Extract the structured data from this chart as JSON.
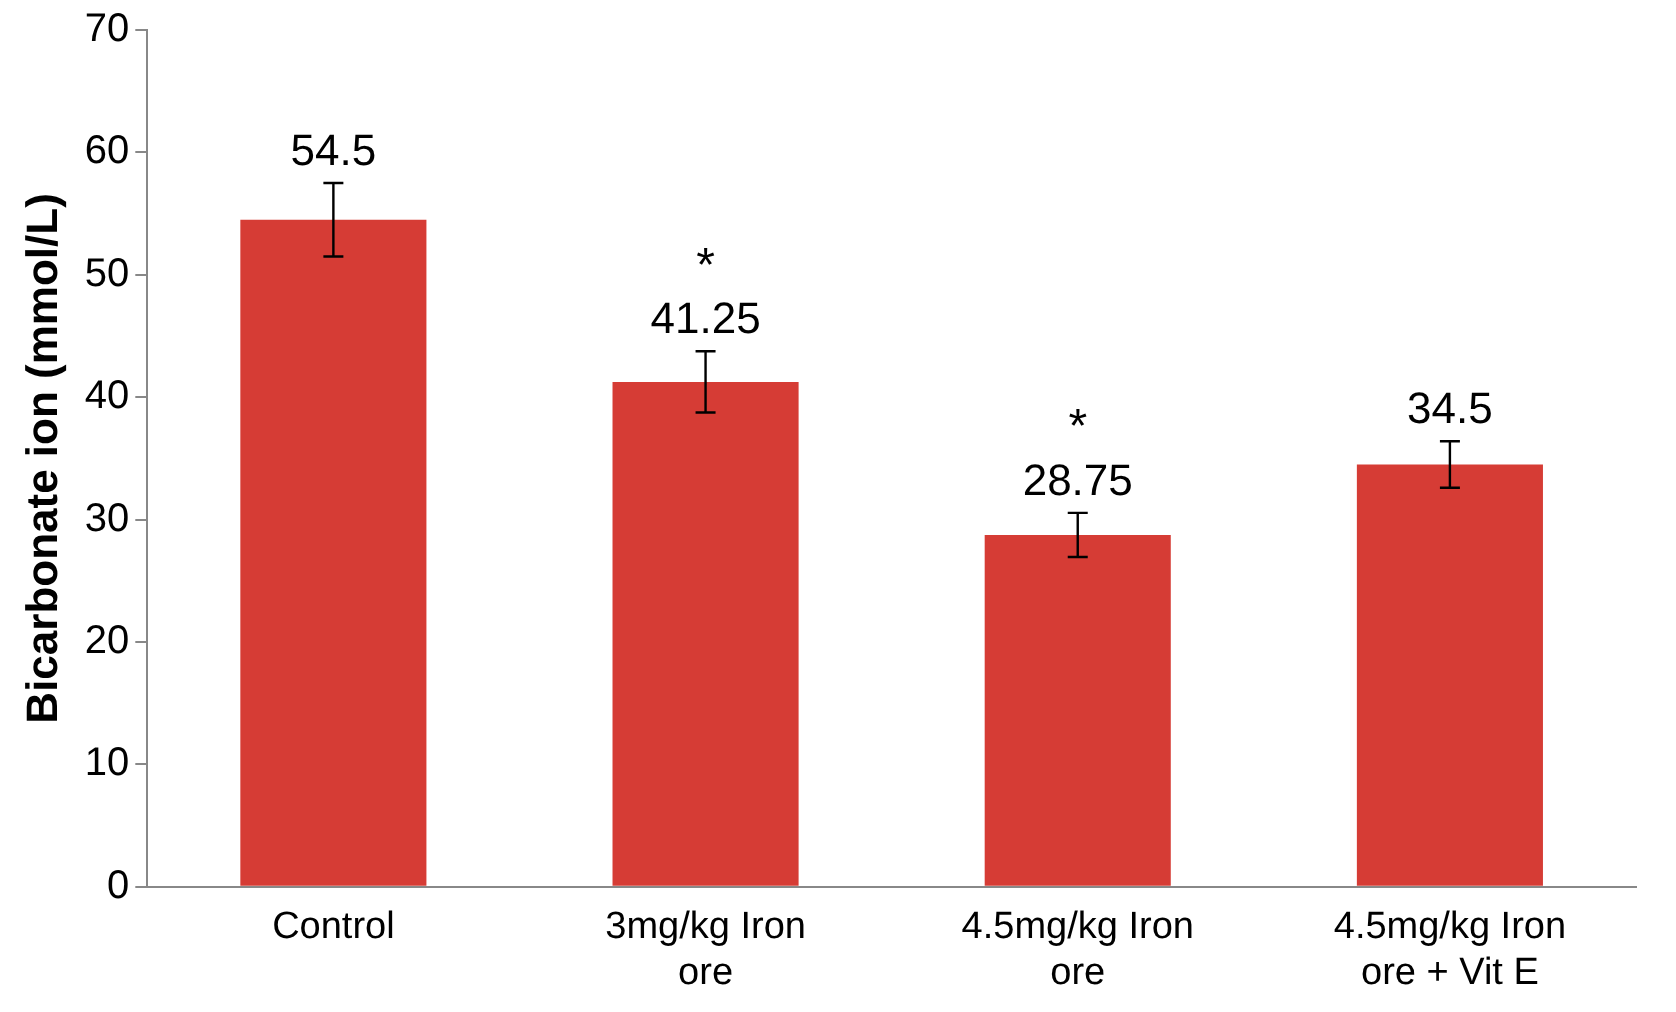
{
  "chart_data": {
    "type": "bar",
    "ylabel": "Bicarbonate ion (mmol/L)",
    "categories": [
      "Control",
      "3mg/kg Iron ore",
      "4.5mg/kg Iron ore",
      "4.5mg/kg Iron ore + Vit E"
    ],
    "values": [
      54.5,
      41.25,
      28.75,
      34.5
    ],
    "errors": [
      3,
      2.5,
      1.8,
      1.9
    ],
    "color": "#d63c35",
    "ylim": [
      0,
      70
    ],
    "yticks": [
      0,
      10,
      20,
      30,
      40,
      50,
      60,
      70
    ],
    "grid": false,
    "legend": false,
    "data_labels": true,
    "annotations": [
      {
        "text": "*",
        "x": "3mg/kg Iron ore",
        "y": 41.25
      },
      {
        "text": "*",
        "x": "4.5mg/kg Iron ore",
        "y": 28.75
      }
    ]
  }
}
